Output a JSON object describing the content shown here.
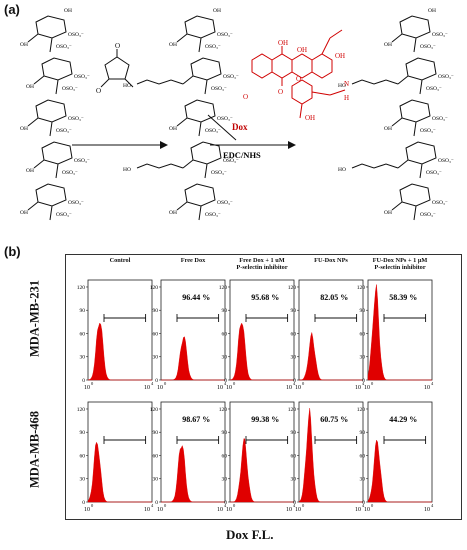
{
  "panel_a": {
    "letter": "(a)",
    "reagent_top": "Dox",
    "reagent_bottom": "EDC/NHS",
    "sulfate_label": "OSO₃⁻",
    "hydroxyl_label": "OH",
    "ho_label": "HO",
    "ring_labels": [
      "O",
      "O",
      "OH",
      "OH",
      "OH",
      "O",
      "O",
      "O",
      "N",
      "H",
      "OH"
    ]
  },
  "panel_b": {
    "letter": "(b)",
    "row_labels": [
      "MDA-MB-231",
      "MDA-MB-468"
    ],
    "column_headers": [
      [
        "Control"
      ],
      [
        "Free Dox"
      ],
      [
        "Free Dox + 1 uM",
        "P-selectin inhibitor"
      ],
      [
        "FU-Dox NPs"
      ],
      [
        "FU-Dox NPs + 1 μM",
        "P-selectin inhibitor"
      ]
    ],
    "percentages": [
      [
        "",
        "96.44 %",
        "95.68 %",
        "82.05 %",
        "58.39 %"
      ],
      [
        "",
        "98.67 %",
        "99.38 %",
        "60.75 %",
        "44.29 %"
      ]
    ],
    "y_ticks": [
      "0",
      "30",
      "60",
      "90",
      "120"
    ],
    "x_tick_low": "10",
    "x_tick_low_exp": "0",
    "x_tick_high": "10",
    "x_tick_high_exp": "4",
    "x_axis_label": "Dox F.L.",
    "histogram_color": "#e00000",
    "peak_fraction": [
      [
        0.62,
        0.45,
        0.62,
        0.45,
        0.92
      ],
      [
        0.62,
        0.62,
        0.62,
        0.88,
        0.62
      ]
    ],
    "peak_position": [
      [
        0.18,
        0.35,
        0.18,
        0.2,
        0.12
      ],
      [
        0.14,
        0.32,
        0.22,
        0.16,
        0.14
      ]
    ]
  }
}
